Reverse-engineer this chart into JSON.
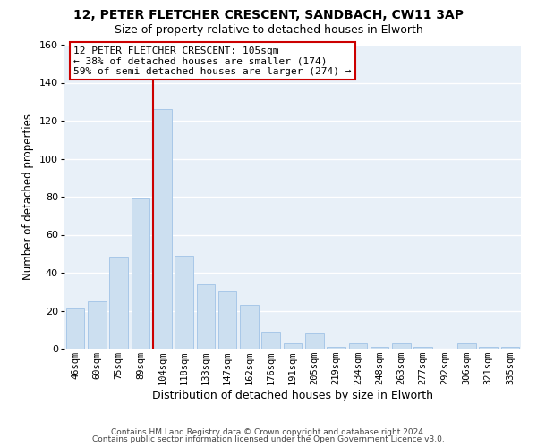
{
  "title1": "12, PETER FLETCHER CRESCENT, SANDBACH, CW11 3AP",
  "title2": "Size of property relative to detached houses in Elworth",
  "xlabel": "Distribution of detached houses by size in Elworth",
  "ylabel": "Number of detached properties",
  "bar_labels": [
    "46sqm",
    "60sqm",
    "75sqm",
    "89sqm",
    "104sqm",
    "118sqm",
    "133sqm",
    "147sqm",
    "162sqm",
    "176sqm",
    "191sqm",
    "205sqm",
    "219sqm",
    "234sqm",
    "248sqm",
    "263sqm",
    "277sqm",
    "292sqm",
    "306sqm",
    "321sqm",
    "335sqm"
  ],
  "bar_heights": [
    21,
    25,
    48,
    79,
    126,
    49,
    34,
    30,
    23,
    9,
    3,
    8,
    1,
    3,
    1,
    3,
    1,
    0,
    3,
    1,
    1
  ],
  "bar_color": "#ccdff0",
  "bar_edge_color": "#a8c8e8",
  "vline_color": "#cc0000",
  "annotation_title": "12 PETER FLETCHER CRESCENT: 105sqm",
  "annotation_line1": "← 38% of detached houses are smaller (174)",
  "annotation_line2": "59% of semi-detached houses are larger (274) →",
  "annotation_box_color": "#ffffff",
  "annotation_box_edge": "#cc0000",
  "ylim": [
    0,
    160
  ],
  "yticks": [
    0,
    20,
    40,
    60,
    80,
    100,
    120,
    140,
    160
  ],
  "footer1": "Contains HM Land Registry data © Crown copyright and database right 2024.",
  "footer2": "Contains public sector information licensed under the Open Government Licence v3.0.",
  "fig_background": "#ffffff",
  "plot_background": "#e8f0f8",
  "grid_color": "#ffffff",
  "title_fontsize": 10,
  "subtitle_fontsize": 9
}
